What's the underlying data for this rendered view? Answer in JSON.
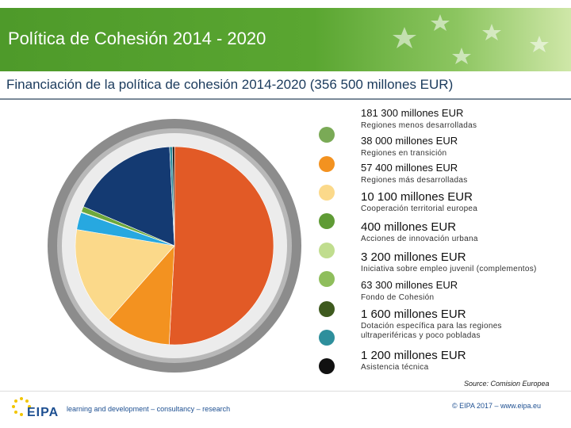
{
  "header": {
    "title": "Política de Cohesión 2014 - 2020",
    "subtitle": "Financiación de la política de cohesión 2014-2020 (356 500 millones EUR)"
  },
  "chart_data": {
    "type": "pie",
    "title": "Financiación de la política de cohesión 2014-2020 (356 500 millones EUR)",
    "unit": "millones EUR",
    "start": "top, clockwise",
    "slices": [
      {
        "name": "Regiones menos desarrolladas",
        "amount_label": "181 300 millones EUR",
        "value": 181300,
        "color": "#e25a26"
      },
      {
        "name": "Regiones en transición",
        "amount_label": "38 000 millones EUR",
        "value": 38000,
        "color": "#f39220"
      },
      {
        "name": "Regiones más desarrolladas",
        "amount_label": "57 400 millones EUR",
        "value": 57400,
        "color": "#fbd98a"
      },
      {
        "name": "Cooperación territorial europea",
        "amount_label": "10 100 millones EUR",
        "value": 10100,
        "color": "#27a8e0"
      },
      {
        "name": "Acciones de innovación urbana",
        "amount_label": "400 millones EUR",
        "value": 400,
        "color": "#9bc76b"
      },
      {
        "name": "Iniciativa sobre empleo juvenil (complementos)",
        "amount_label": "3 200 millones EUR",
        "value": 3200,
        "color": "#6ea83b"
      },
      {
        "name": "Fondo de Cohesión",
        "amount_label": "63 300 millones EUR",
        "value": 63300,
        "color": "#143a72"
      },
      {
        "name": "Dotación específica para las regiones ultraperiféricas y poco pobladas",
        "amount_label": "1 600 millones EUR",
        "value": 1600,
        "color": "#2e8f9c"
      },
      {
        "name": "Asistencia técnica",
        "amount_label": "1 200 millones EUR",
        "value": 1200,
        "color": "#111111"
      }
    ],
    "legend": [
      {
        "amount": "181 300 millones EUR",
        "label": "Regiones menos desarrolladas",
        "color": "#7aaa56"
      },
      {
        "amount": "38 000 millones EUR",
        "label": "Regiones en transición",
        "color": "#f39220"
      },
      {
        "amount": "57 400 millones EUR",
        "label": "Regiones más desarrolladas",
        "color": "#fbd98a"
      },
      {
        "amount": "10 100 millones EUR",
        "label": "Cooperación territorial europea",
        "color": "#5f9b35"
      },
      {
        "amount": "400 millones EUR",
        "label": "Acciones de innovación urbana",
        "color": "#c0dd8e"
      },
      {
        "amount": "3 200 millones EUR",
        "label": "Iniciativa sobre empleo juvenil (complementos)",
        "color": "#8fbe5c"
      },
      {
        "amount": "63 300 millones EUR",
        "label": "Fondo de Cohesión",
        "color": "#3e5a1e"
      },
      {
        "amount": "1 600 millones EUR",
        "label": "Dotación específica para las regiones ultraperiféricas y poco pobladas",
        "color": "#2e8f9c"
      },
      {
        "amount": "1 200 millones EUR",
        "label": "Asistencia técnica",
        "color": "#111111"
      }
    ]
  },
  "source": "Source: Comision Europea",
  "footer": {
    "logo": "EIPA",
    "tagline": "learning and development – consultancy – research",
    "copyright": "© EIPA 2017 – www.eipa.eu"
  }
}
